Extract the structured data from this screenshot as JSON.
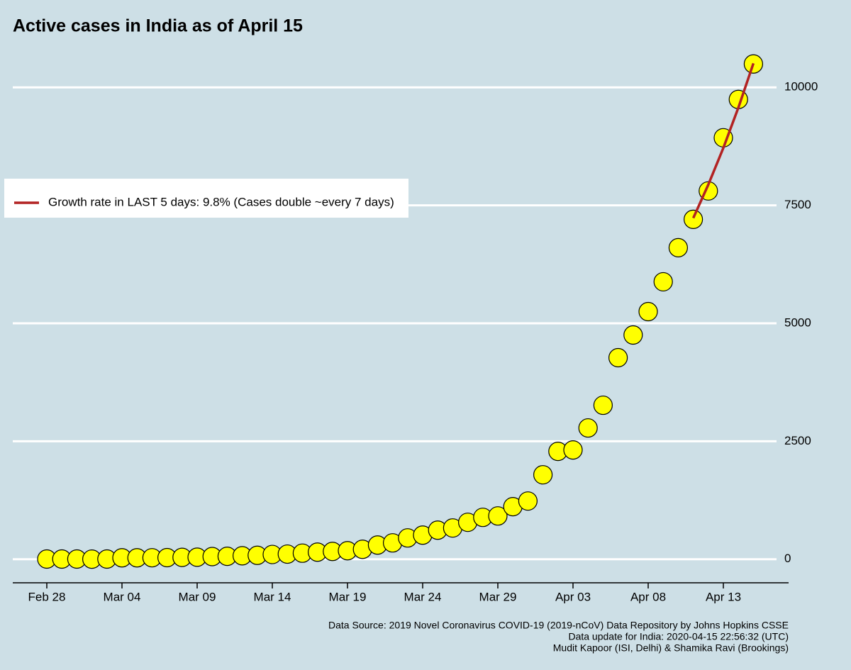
{
  "chart_data": {
    "type": "scatter",
    "title": "Active cases in India as of April 15",
    "categories": [
      "Feb 28",
      null,
      null,
      null,
      null,
      "Mar 04",
      null,
      null,
      null,
      null,
      "Mar 09",
      null,
      null,
      null,
      null,
      "Mar 14",
      null,
      null,
      null,
      null,
      "Mar 19",
      null,
      null,
      null,
      null,
      "Mar 24",
      null,
      null,
      null,
      null,
      "Mar 29",
      null,
      null,
      null,
      null,
      "Apr 03",
      null,
      null,
      null,
      null,
      "Apr 08",
      null,
      null,
      null,
      null,
      "Apr 13",
      null,
      null
    ],
    "values": [
      3,
      3,
      3,
      2,
      3,
      30,
      30,
      31,
      34,
      39,
      43,
      56,
      62,
      73,
      82,
      100,
      108,
      128,
      150,
      165,
      180,
      210,
      300,
      346,
      451,
      511,
      616,
      662,
      782,
      887,
      917,
      1113,
      1233,
      1789,
      2286,
      2316,
      2782,
      3263,
      4271,
      4752,
      5248,
      5880,
      6602,
      7203,
      7805,
      8932,
      9744,
      10496
    ],
    "color": "#ffff00",
    "series": [
      {
        "name": "Growth rate in LAST 5 days: 9.8% (Cases double ~every 7 days)",
        "color": "#b22222",
        "values": [
          null,
          null,
          null,
          null,
          null,
          null,
          null,
          null,
          null,
          null,
          null,
          null,
          null,
          null,
          null,
          null,
          null,
          null,
          null,
          null,
          null,
          null,
          null,
          null,
          null,
          null,
          null,
          null,
          null,
          null,
          null,
          null,
          null,
          null,
          null,
          null,
          null,
          null,
          null,
          null,
          null,
          null,
          null,
          7230,
          7939,
          8717,
          9571,
          10509
        ]
      }
    ],
    "ylim": [
      -500,
      10800
    ],
    "yticks": [
      0,
      2500,
      5000,
      7500,
      10000
    ],
    "grid": true,
    "legend": "left",
    "notes": [
      "Data Source: 2019 Novel Coronavirus COVID-19 (2019-nCoV) Data Repository by Johns Hopkins CSSE",
      "Data update for India: 2020-04-15 22:56:32 (UTC)",
      "Mudit Kapoor (ISI, Delhi) & Shamika Ravi (Brookings)"
    ]
  }
}
